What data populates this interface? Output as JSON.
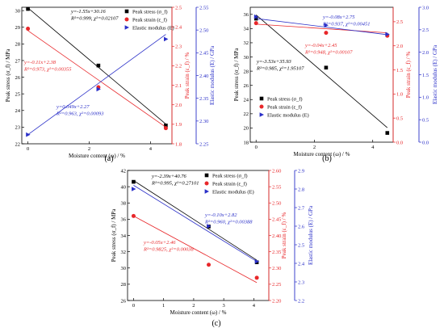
{
  "colors": {
    "stress": "#000000",
    "strain": "#e8272a",
    "modulus": "#2a2fc8",
    "frame": "#000000"
  },
  "series_names": {
    "stress": "Peak stress (σ_f)",
    "strain": "Peak strain (ε_f)",
    "modulus": "Elastic modulus (E)"
  },
  "chart_data": [
    {
      "id": "a",
      "panel_label": "(a)",
      "type": "scatter",
      "xlabel": "Moisture content (ω) / %",
      "ylabel_left": "Peak stress (σ_f) / MPa",
      "ylabel_right1": "Peak strain (ε_f) / %",
      "ylabel_right2": "Elastic modulus (E) / GPa",
      "xlim": [
        -0.2,
        4.7
      ],
      "xticks": [
        0,
        2,
        4
      ],
      "ylim_left": [
        22,
        30.2
      ],
      "yticks_left": [
        22,
        23,
        24,
        25,
        26,
        27,
        28,
        29,
        30
      ],
      "ylim_r1": [
        1.8,
        2.5
      ],
      "yticks_r1": [
        1.8,
        1.9,
        2.0,
        2.1,
        2.2,
        2.3,
        2.4,
        2.5
      ],
      "ylim_r2": [
        2.25,
        2.55
      ],
      "yticks_r2": [
        2.25,
        2.3,
        2.35,
        2.4,
        2.45,
        2.5,
        2.55
      ],
      "legend_position": "top-right",
      "series": [
        {
          "key": "stress",
          "axis": "left",
          "marker": "square",
          "x": [
            0,
            2.3,
            4.5
          ],
          "y": [
            30.1,
            26.7,
            23.1
          ],
          "fit": {
            "slope": -1.55,
            "intercept": 30.16
          },
          "annotation": [
            "y=-1.55x+30.16",
            "R²=0.999, χ²=0.02107"
          ]
        },
        {
          "key": "strain",
          "axis": "r1",
          "marker": "circle",
          "x": [
            0,
            2.3,
            4.5
          ],
          "y": [
            2.39,
            2.09,
            1.88
          ],
          "fit": {
            "slope": -0.11,
            "intercept": 2.38
          },
          "annotation": [
            "y=-0.11x+2.38",
            "R²=0.973, χ²=0.00355"
          ]
        },
        {
          "key": "modulus",
          "axis": "r2",
          "marker": "triangle",
          "x": [
            0,
            2.3,
            4.5
          ],
          "y": [
            2.27,
            2.37,
            2.48
          ],
          "fit": {
            "slope": 0.049,
            "intercept": 2.27
          },
          "annotation": [
            "y=0.049x+2.27",
            "R²=0.963, χ²=0.00093"
          ]
        }
      ]
    },
    {
      "id": "b",
      "panel_label": "(b)",
      "type": "scatter",
      "xlabel": "Moisture content (ω) / %",
      "ylabel_left": "Peak stress (σ_f) / MPa",
      "ylabel_right1": "Peak strain (ε_f) / %",
      "ylabel_right2": "Elastic modulus (E) / GPa",
      "xlim": [
        -0.2,
        4.7
      ],
      "xticks": [
        0,
        2,
        4
      ],
      "ylim_left": [
        18,
        37
      ],
      "yticks_left": [
        18,
        20,
        22,
        24,
        26,
        28,
        30,
        32,
        34,
        36
      ],
      "ylim_r1": [
        0.0,
        2.8
      ],
      "yticks_r1": [
        0.0,
        0.5,
        1.0,
        1.5,
        2.0,
        2.5
      ],
      "ylim_r2": [
        0.0,
        3.0
      ],
      "yticks_r2": [
        0.0,
        0.5,
        1.0,
        1.5,
        2.0,
        2.5,
        3.0
      ],
      "legend_position": "bottom-left",
      "series": [
        {
          "key": "stress",
          "axis": "left",
          "marker": "square",
          "x": [
            0,
            2.4,
            4.5
          ],
          "y": [
            35.4,
            28.5,
            19.3
          ],
          "fit": {
            "slope": -3.53,
            "intercept": 35.93
          },
          "annotation": [
            "y=-3.53x+35.93",
            "R²=0.985, χ²=1.95107"
          ]
        },
        {
          "key": "strain",
          "axis": "r1",
          "marker": "circle",
          "x": [
            0,
            2.4,
            4.5
          ],
          "y": [
            2.47,
            2.27,
            2.21
          ],
          "fit": {
            "slope": -0.04,
            "intercept": 2.45
          },
          "annotation": [
            "y=-0.04x+2.45",
            "R²=0.948, χ²=0.00107"
          ]
        },
        {
          "key": "modulus",
          "axis": "r2",
          "marker": "triangle",
          "x": [
            0,
            2.4,
            4.5
          ],
          "y": [
            2.79,
            2.6,
            2.4
          ],
          "fit": {
            "slope": -0.08,
            "intercept": 2.75
          },
          "annotation": [
            "y=-0.08x+2.75",
            "R²=0.937, χ²=0.00451"
          ]
        }
      ]
    },
    {
      "id": "c",
      "panel_label": "(c)",
      "type": "scatter",
      "xlabel": "Moisture content (ω) / %",
      "ylabel_left": "Peak stress (σ_f) / MPa",
      "ylabel_right1": "Peak strain (ε_f) / %",
      "ylabel_right2": "Elastic modulus (E) / GPa",
      "xlim": [
        -0.2,
        4.5
      ],
      "xticks": [
        0,
        1,
        2,
        3,
        4
      ],
      "ylim_left": [
        26,
        42
      ],
      "yticks_left": [
        26,
        28,
        30,
        32,
        34,
        36,
        38,
        40,
        42
      ],
      "ylim_r1": [
        2.2,
        2.6
      ],
      "yticks_r1": [
        2.2,
        2.25,
        2.3,
        2.35,
        2.4,
        2.45,
        2.5,
        2.55,
        2.6
      ],
      "ylim_r2": [
        2.2,
        2.9
      ],
      "yticks_r2": [
        2.2,
        2.3,
        2.4,
        2.5,
        2.6,
        2.7,
        2.8,
        2.9
      ],
      "legend_position": "top-right",
      "series": [
        {
          "key": "stress",
          "axis": "left",
          "marker": "square",
          "x": [
            0,
            2.5,
            4.1
          ],
          "y": [
            40.6,
            35.1,
            30.7
          ],
          "fit": {
            "slope": -2.39,
            "intercept": 40.76
          },
          "annotation": [
            "y=-2.39x+40.76",
            "R²=0.995, χ²=0.27101"
          ]
        },
        {
          "key": "strain",
          "axis": "r1",
          "marker": "circle",
          "x": [
            0,
            2.5,
            4.1
          ],
          "y": [
            2.46,
            2.31,
            2.27
          ],
          "fit": {
            "slope": -0.05,
            "intercept": 2.46
          },
          "annotation": [
            "y=-0.05x+2.46",
            "R²=0.9825, χ²=0.00038"
          ]
        },
        {
          "key": "modulus",
          "axis": "r2",
          "marker": "triangle",
          "x": [
            0,
            2.5,
            4.1
          ],
          "y": [
            2.8,
            2.6,
            2.41
          ],
          "fit": {
            "slope": -0.1,
            "intercept": 2.82
          },
          "annotation": [
            "y=-0.10x+2.82",
            "R²=0.960, χ²=0.00388"
          ]
        }
      ]
    }
  ]
}
